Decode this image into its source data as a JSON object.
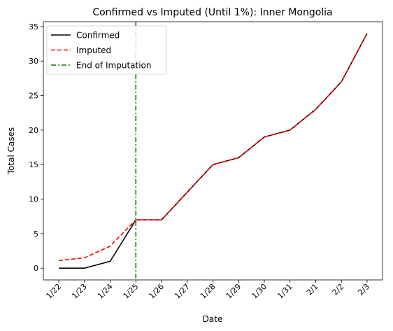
{
  "chart_data": {
    "type": "line",
    "title": "Confirmed vs Imputed (Until 1%): Inner Mongolia",
    "xlabel": "Date",
    "ylabel": "Total Cases",
    "categories": [
      "1/22",
      "1/23",
      "1/24",
      "1/25",
      "1/26",
      "1/27",
      "1/28",
      "1/29",
      "1/30",
      "1/31",
      "2/1",
      "2/2",
      "2/3"
    ],
    "ylim": [
      -1.7,
      35.7
    ],
    "yticks": [
      0,
      5,
      10,
      15,
      20,
      25,
      30,
      35
    ],
    "grid": false,
    "legend_position": "top-left",
    "series": [
      {
        "name": "Confirmed",
        "color": "#000000",
        "style": "solid",
        "values": [
          0,
          0,
          1,
          7,
          7,
          11,
          15,
          16,
          19,
          20,
          23,
          27,
          34
        ]
      },
      {
        "name": "Imputed",
        "color": "#ff0000",
        "style": "dashed",
        "values": [
          1.1,
          1.5,
          3.2,
          7,
          7,
          11,
          15,
          16,
          19,
          20,
          23,
          27,
          34
        ]
      }
    ],
    "vline": {
      "name": "End of Imputation",
      "x": "1/25",
      "color": "#008000",
      "style": "dashdot"
    }
  }
}
